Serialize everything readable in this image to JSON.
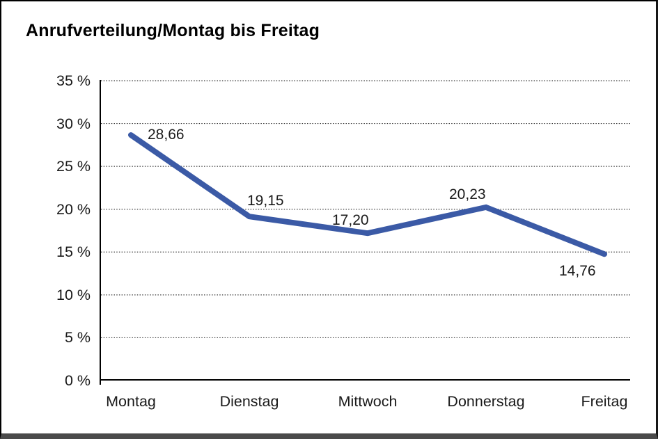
{
  "chart_data": {
    "type": "line",
    "title": "Anrufverteilung/Montag bis Freitag",
    "categories": [
      "Montag",
      "Dienstag",
      "Mittwoch",
      "Donnerstag",
      "Freitag"
    ],
    "values": [
      28.66,
      19.15,
      17.2,
      20.23,
      14.76
    ],
    "point_labels": [
      "28,66",
      "19,15",
      "17,20",
      "20,23",
      "14,76"
    ],
    "series_name": "Anrufverteilung",
    "xlabel": "",
    "ylabel": "",
    "ylim": [
      0,
      35
    ],
    "ytick_values": [
      35,
      30,
      25,
      20,
      15,
      10,
      5,
      0
    ],
    "ytick_labels": [
      "35 %",
      "30 %",
      "25 %",
      "20 %",
      "15 %",
      "10 %",
      "5 %",
      "0 %"
    ],
    "grid": "horizontal-dotted",
    "legend_position": "none",
    "line_color": "#3B5AA6",
    "text_color": "#1a1a1a",
    "axis_color": "#000000",
    "grid_color": "#3d3d3d"
  }
}
